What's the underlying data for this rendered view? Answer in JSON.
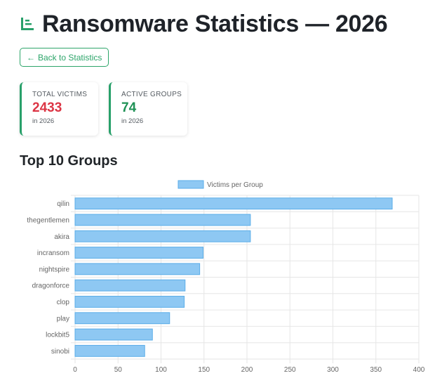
{
  "page": {
    "title": "Ransomware Statistics — 2026",
    "back_label": "Back to Statistics",
    "back_arrow": "←",
    "section_title": "Top 10 Groups"
  },
  "cards": [
    {
      "label": "TOTAL VICTIMS",
      "value": "2433",
      "sub": "in 2026",
      "value_color": "#dc3545"
    },
    {
      "label": "ACTIVE GROUPS",
      "value": "74",
      "sub": "in 2026",
      "value_color": "#1e9155"
    }
  ],
  "colors": {
    "accent": "#28a06a",
    "bar_fill": "#8ec8f3",
    "bar_stroke": "#5aade8",
    "grid": "#e6e6e6"
  },
  "chart_data": {
    "type": "bar",
    "orientation": "horizontal",
    "categories": [
      "qilin",
      "thegentlemen",
      "akira",
      "incransom",
      "nightspire",
      "dragonforce",
      "clop",
      "play",
      "lockbit5",
      "sinobi"
    ],
    "series": [
      {
        "name": "Victims per Group",
        "values": [
          369,
          204,
          204,
          149,
          145,
          128,
          127,
          110,
          90,
          81
        ]
      }
    ],
    "xlim": [
      0,
      400
    ],
    "xticks": [
      0,
      50,
      100,
      150,
      200,
      250,
      300,
      350,
      400
    ],
    "legend": "top",
    "grid": true,
    "title": "",
    "xlabel": "",
    "ylabel": ""
  }
}
